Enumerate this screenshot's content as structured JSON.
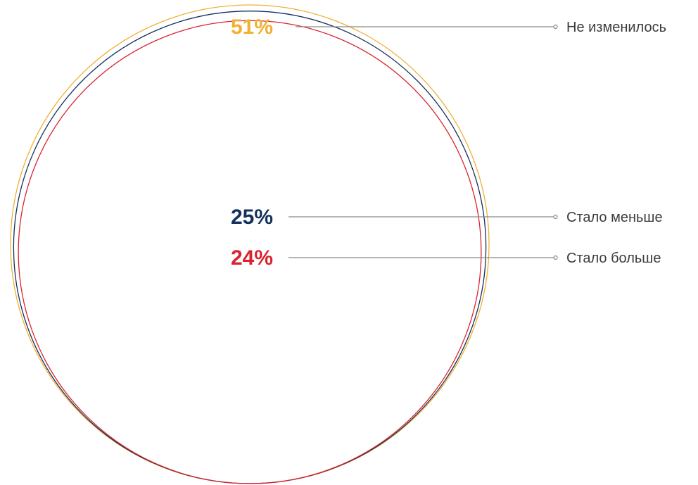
{
  "chart_data": {
    "type": "nested-bubble",
    "title": "",
    "series": [
      {
        "name": "Не изменилось",
        "value": 51,
        "label": "51%",
        "color": "#f0b033"
      },
      {
        "name": "Стало меньше",
        "value": 25,
        "label": "25%",
        "color": "#13315c"
      },
      {
        "name": "Стало больше",
        "value": 24,
        "label": "24%",
        "color": "#d9242f"
      }
    ],
    "leader_line_color": "#8a8a8a"
  }
}
